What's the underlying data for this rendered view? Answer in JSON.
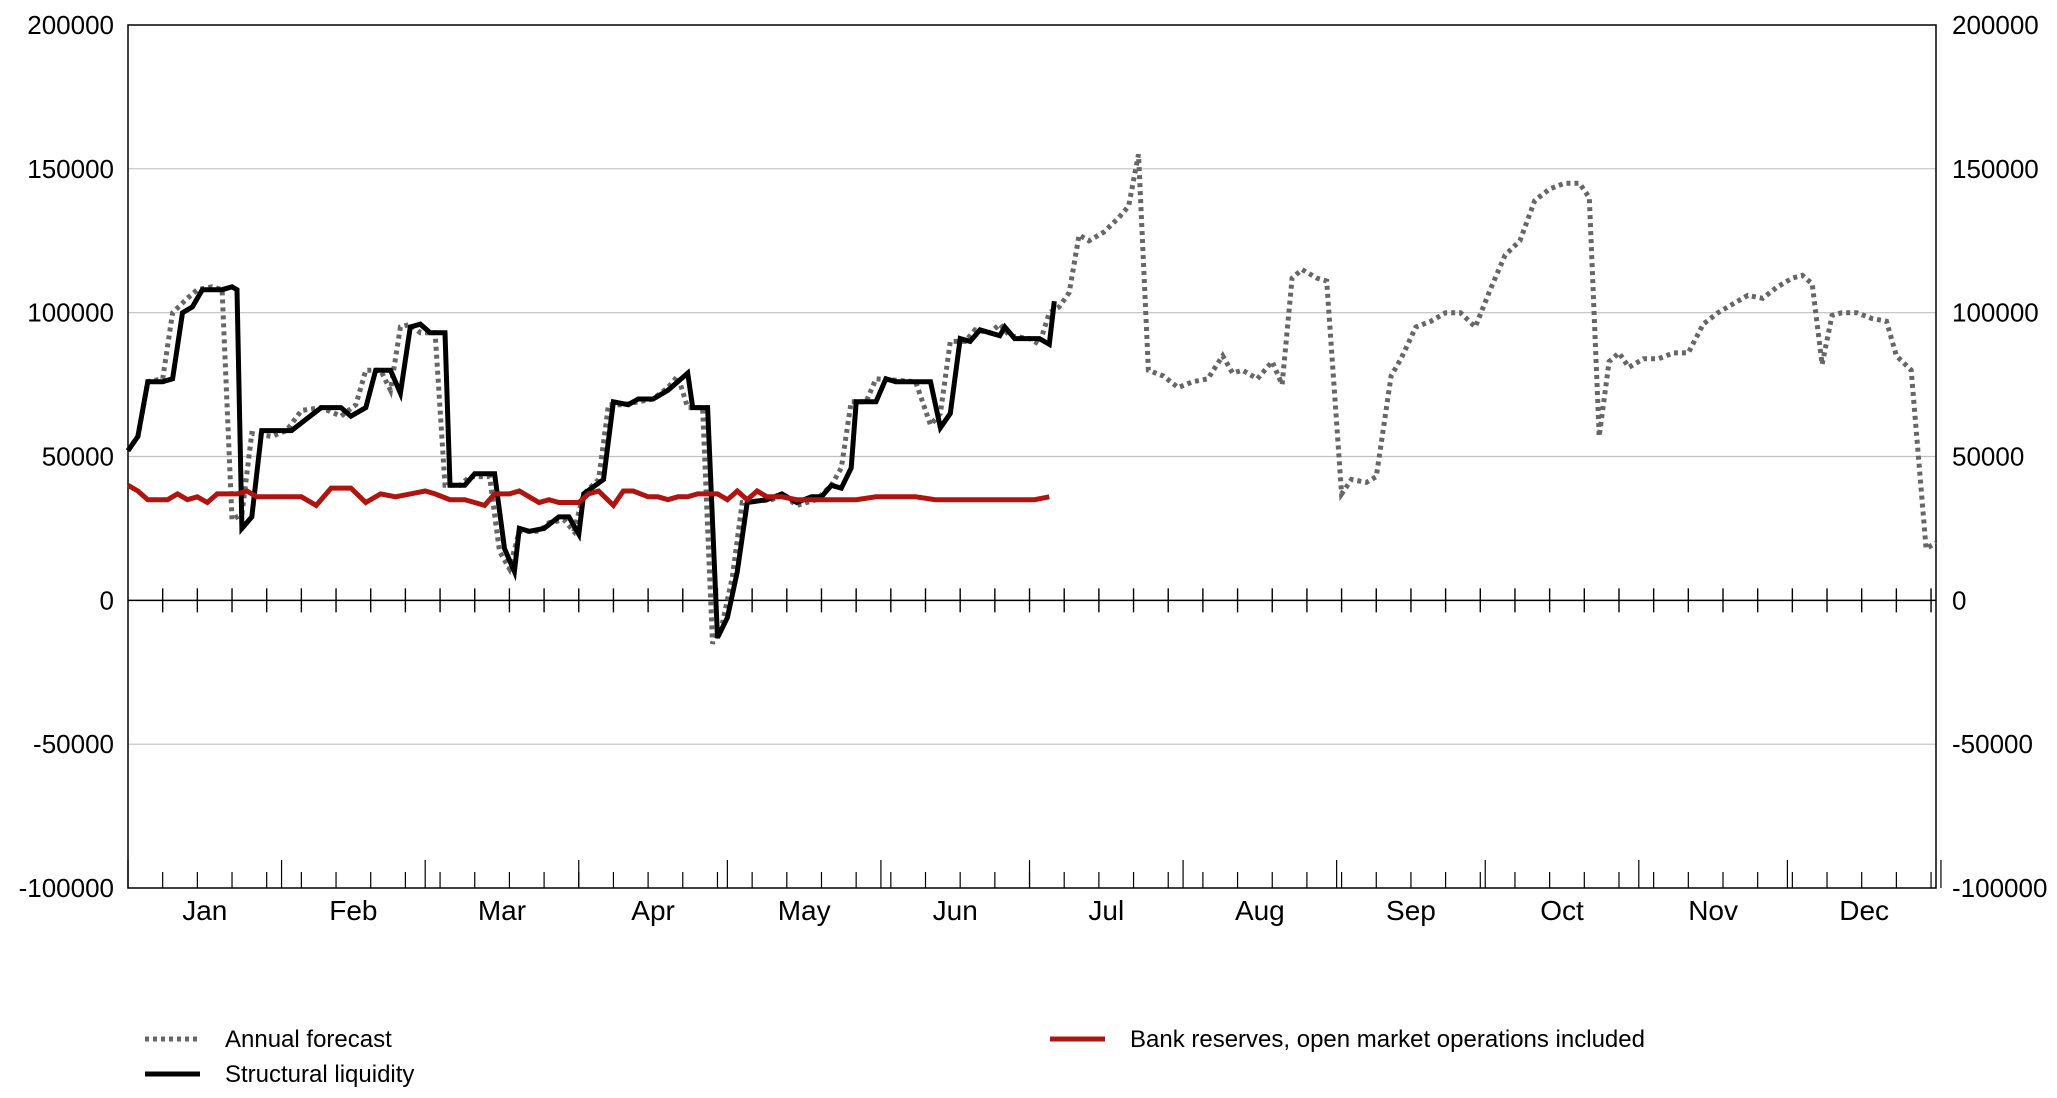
{
  "chart_data": {
    "type": "line",
    "y_ticks": [
      "200000",
      "150000",
      "100000",
      "50000",
      "0",
      "-50000",
      "-100000"
    ],
    "ylim": [
      -100000,
      200000
    ],
    "y_tick_values": [
      200000,
      150000,
      100000,
      50000,
      0,
      -50000,
      -100000
    ],
    "x_axis_type": "day-of-year",
    "xlim": [
      1,
      366
    ],
    "grid": "horizontal",
    "month_labels": [
      "Jan",
      "Feb",
      "Mar",
      "Apr",
      "May",
      "Jun",
      "Jul",
      "Aug",
      "Sep",
      "Oct",
      "Nov",
      "Dec"
    ],
    "legend": {
      "placement": "bottom",
      "items": [
        {
          "label": "Annual forecast",
          "series": "forecast"
        },
        {
          "label": "Structural liquidity",
          "series": "structural"
        },
        {
          "label": "Bank reserves, open market operations included",
          "series": "reserves"
        }
      ]
    },
    "colors": {
      "forecast": "#666666",
      "structural": "#000000",
      "reserves": "#b01410",
      "grid": "#c0c0c0",
      "axis": "#000000"
    },
    "series": [
      {
        "id": "forecast",
        "name": "Annual forecast",
        "style": "dotted",
        "points": [
          [
            1,
            52000
          ],
          [
            3,
            57000
          ],
          [
            5,
            76000
          ],
          [
            8,
            77000
          ],
          [
            10,
            100000
          ],
          [
            13,
            105000
          ],
          [
            15,
            108000
          ],
          [
            18,
            109000
          ],
          [
            20,
            108000
          ],
          [
            22,
            28000
          ],
          [
            24,
            30000
          ],
          [
            26,
            58000
          ],
          [
            30,
            57000
          ],
          [
            33,
            59000
          ],
          [
            36,
            66000
          ],
          [
            40,
            67000
          ],
          [
            44,
            64000
          ],
          [
            47,
            68000
          ],
          [
            49,
            80000
          ],
          [
            52,
            80000
          ],
          [
            54,
            73000
          ],
          [
            56,
            95000
          ],
          [
            58,
            96000
          ],
          [
            60,
            93000
          ],
          [
            63,
            93000
          ],
          [
            65,
            40000
          ],
          [
            68,
            40000
          ],
          [
            70,
            43000
          ],
          [
            74,
            43000
          ],
          [
            76,
            17000
          ],
          [
            78,
            11000
          ],
          [
            80,
            24000
          ],
          [
            84,
            24000
          ],
          [
            86,
            27000
          ],
          [
            89,
            28000
          ],
          [
            91,
            24000
          ],
          [
            93,
            37000
          ],
          [
            96,
            42000
          ],
          [
            98,
            68000
          ],
          [
            101,
            68000
          ],
          [
            104,
            69000
          ],
          [
            107,
            70000
          ],
          [
            110,
            74000
          ],
          [
            112,
            78000
          ],
          [
            114,
            67000
          ],
          [
            117,
            67000
          ],
          [
            119,
            -15000
          ],
          [
            121,
            -8000
          ],
          [
            123,
            8000
          ],
          [
            125,
            34000
          ],
          [
            131,
            35000
          ],
          [
            133,
            37000
          ],
          [
            136,
            33000
          ],
          [
            140,
            35000
          ],
          [
            143,
            40000
          ],
          [
            145,
            46000
          ],
          [
            147,
            69000
          ],
          [
            150,
            69000
          ],
          [
            152,
            77000
          ],
          [
            160,
            76000
          ],
          [
            163,
            61000
          ],
          [
            165,
            65000
          ],
          [
            167,
            90000
          ],
          [
            170,
            90000
          ],
          [
            172,
            94000
          ],
          [
            175,
            93000
          ],
          [
            177,
            96000
          ],
          [
            179,
            92000
          ],
          [
            183,
            91000
          ],
          [
            185,
            89000
          ],
          [
            187,
            100000
          ],
          [
            189,
            102000
          ],
          [
            191,
            107000
          ],
          [
            193,
            127000
          ],
          [
            195,
            125000
          ],
          [
            198,
            128000
          ],
          [
            201,
            133000
          ],
          [
            203,
            137000
          ],
          [
            205,
            155000
          ],
          [
            207,
            80000
          ],
          [
            210,
            78000
          ],
          [
            213,
            74000
          ],
          [
            216,
            76000
          ],
          [
            219,
            77000
          ],
          [
            222,
            85000
          ],
          [
            224,
            79000
          ],
          [
            226,
            80000
          ],
          [
            229,
            77000
          ],
          [
            232,
            83000
          ],
          [
            234,
            75000
          ],
          [
            236,
            112000
          ],
          [
            238,
            115000
          ],
          [
            241,
            112000
          ],
          [
            243,
            111000
          ],
          [
            246,
            37000
          ],
          [
            248,
            42000
          ],
          [
            251,
            41000
          ],
          [
            253,
            43000
          ],
          [
            256,
            78000
          ],
          [
            258,
            84000
          ],
          [
            261,
            95000
          ],
          [
            264,
            97000
          ],
          [
            267,
            100000
          ],
          [
            270,
            100000
          ],
          [
            273,
            95000
          ],
          [
            276,
            108000
          ],
          [
            279,
            120000
          ],
          [
            282,
            125000
          ],
          [
            285,
            139000
          ],
          [
            288,
            143000
          ],
          [
            291,
            145000
          ],
          [
            294,
            145000
          ],
          [
            296,
            140000
          ],
          [
            298,
            57000
          ],
          [
            300,
            83000
          ],
          [
            302,
            86000
          ],
          [
            304,
            81000
          ],
          [
            307,
            84000
          ],
          [
            310,
            84000
          ],
          [
            313,
            86000
          ],
          [
            316,
            86000
          ],
          [
            319,
            96000
          ],
          [
            322,
            100000
          ],
          [
            325,
            103000
          ],
          [
            328,
            106000
          ],
          [
            331,
            105000
          ],
          [
            334,
            109000
          ],
          [
            337,
            112000
          ],
          [
            339,
            113000
          ],
          [
            341,
            110000
          ],
          [
            343,
            82000
          ],
          [
            345,
            99000
          ],
          [
            347,
            100000
          ],
          [
            350,
            100000
          ],
          [
            353,
            98000
          ],
          [
            356,
            97000
          ],
          [
            358,
            85000
          ],
          [
            361,
            80000
          ],
          [
            364,
            18000
          ],
          [
            366,
            20000
          ]
        ]
      },
      {
        "id": "structural",
        "name": "Structural liquidity",
        "style": "solid",
        "points": [
          [
            1,
            52000
          ],
          [
            3,
            57000
          ],
          [
            5,
            76000
          ],
          [
            8,
            76000
          ],
          [
            10,
            77000
          ],
          [
            12,
            100000
          ],
          [
            14,
            102000
          ],
          [
            16,
            108000
          ],
          [
            20,
            108000
          ],
          [
            22,
            109000
          ],
          [
            23,
            108000
          ],
          [
            24,
            25000
          ],
          [
            26,
            29000
          ],
          [
            28,
            59000
          ],
          [
            34,
            59000
          ],
          [
            37,
            63000
          ],
          [
            40,
            67000
          ],
          [
            44,
            67000
          ],
          [
            46,
            64000
          ],
          [
            49,
            67000
          ],
          [
            51,
            80000
          ],
          [
            54,
            80000
          ],
          [
            56,
            72000
          ],
          [
            58,
            95000
          ],
          [
            60,
            96000
          ],
          [
            62,
            93000
          ],
          [
            65,
            93000
          ],
          [
            66,
            40000
          ],
          [
            69,
            40000
          ],
          [
            71,
            44000
          ],
          [
            75,
            44000
          ],
          [
            77,
            18000
          ],
          [
            79,
            10000
          ],
          [
            80,
            25000
          ],
          [
            82,
            24000
          ],
          [
            85,
            25000
          ],
          [
            88,
            29000
          ],
          [
            90,
            29000
          ],
          [
            92,
            23000
          ],
          [
            93,
            37000
          ],
          [
            97,
            42000
          ],
          [
            99,
            69000
          ],
          [
            102,
            68000
          ],
          [
            104,
            70000
          ],
          [
            107,
            70000
          ],
          [
            110,
            73000
          ],
          [
            112,
            76000
          ],
          [
            114,
            79000
          ],
          [
            115,
            67000
          ],
          [
            118,
            67000
          ],
          [
            120,
            -13000
          ],
          [
            122,
            -6000
          ],
          [
            124,
            10000
          ],
          [
            126,
            34000
          ],
          [
            130,
            35000
          ],
          [
            133,
            37000
          ],
          [
            136,
            34000
          ],
          [
            139,
            36000
          ],
          [
            141,
            36000
          ],
          [
            143,
            40000
          ],
          [
            145,
            39000
          ],
          [
            147,
            46000
          ],
          [
            148,
            69000
          ],
          [
            152,
            69000
          ],
          [
            154,
            77000
          ],
          [
            156,
            76000
          ],
          [
            163,
            76000
          ],
          [
            165,
            60000
          ],
          [
            167,
            65000
          ],
          [
            169,
            91000
          ],
          [
            171,
            90000
          ],
          [
            173,
            94000
          ],
          [
            175,
            93000
          ],
          [
            177,
            92000
          ],
          [
            178,
            95000
          ],
          [
            180,
            91000
          ],
          [
            185,
            91000
          ],
          [
            187,
            89000
          ],
          [
            188,
            104000
          ]
        ]
      },
      {
        "id": "reserves",
        "name": "Bank reserves, open market operations included",
        "style": "solid",
        "points": [
          [
            1,
            40000
          ],
          [
            3,
            38000
          ],
          [
            5,
            35000
          ],
          [
            9,
            35000
          ],
          [
            11,
            37000
          ],
          [
            13,
            35000
          ],
          [
            15,
            36000
          ],
          [
            17,
            34000
          ],
          [
            19,
            37000
          ],
          [
            23,
            37000
          ],
          [
            25,
            38000
          ],
          [
            27,
            36000
          ],
          [
            29,
            36000
          ],
          [
            33,
            36000
          ],
          [
            36,
            36000
          ],
          [
            39,
            33000
          ],
          [
            42,
            39000
          ],
          [
            46,
            39000
          ],
          [
            49,
            34000
          ],
          [
            52,
            37000
          ],
          [
            55,
            36000
          ],
          [
            58,
            37000
          ],
          [
            61,
            38000
          ],
          [
            63,
            37000
          ],
          [
            66,
            35000
          ],
          [
            69,
            35000
          ],
          [
            71,
            34000
          ],
          [
            73,
            33000
          ],
          [
            75,
            37000
          ],
          [
            78,
            37000
          ],
          [
            80,
            38000
          ],
          [
            82,
            36000
          ],
          [
            84,
            34000
          ],
          [
            86,
            35000
          ],
          [
            88,
            34000
          ],
          [
            92,
            34000
          ],
          [
            94,
            37000
          ],
          [
            96,
            38000
          ],
          [
            99,
            33000
          ],
          [
            101,
            38000
          ],
          [
            103,
            38000
          ],
          [
            106,
            36000
          ],
          [
            108,
            36000
          ],
          [
            110,
            35000
          ],
          [
            112,
            36000
          ],
          [
            114,
            36000
          ],
          [
            116,
            37000
          ],
          [
            118,
            37000
          ],
          [
            120,
            37000
          ],
          [
            122,
            35000
          ],
          [
            124,
            38000
          ],
          [
            126,
            35000
          ],
          [
            128,
            38000
          ],
          [
            130,
            36000
          ],
          [
            133,
            36000
          ],
          [
            136,
            35000
          ],
          [
            140,
            35000
          ],
          [
            144,
            35000
          ],
          [
            148,
            35000
          ],
          [
            152,
            36000
          ],
          [
            156,
            36000
          ],
          [
            160,
            36000
          ],
          [
            164,
            35000
          ],
          [
            168,
            35000
          ],
          [
            172,
            35000
          ],
          [
            176,
            35000
          ],
          [
            180,
            35000
          ],
          [
            184,
            35000
          ],
          [
            187,
            36000
          ]
        ]
      }
    ]
  }
}
